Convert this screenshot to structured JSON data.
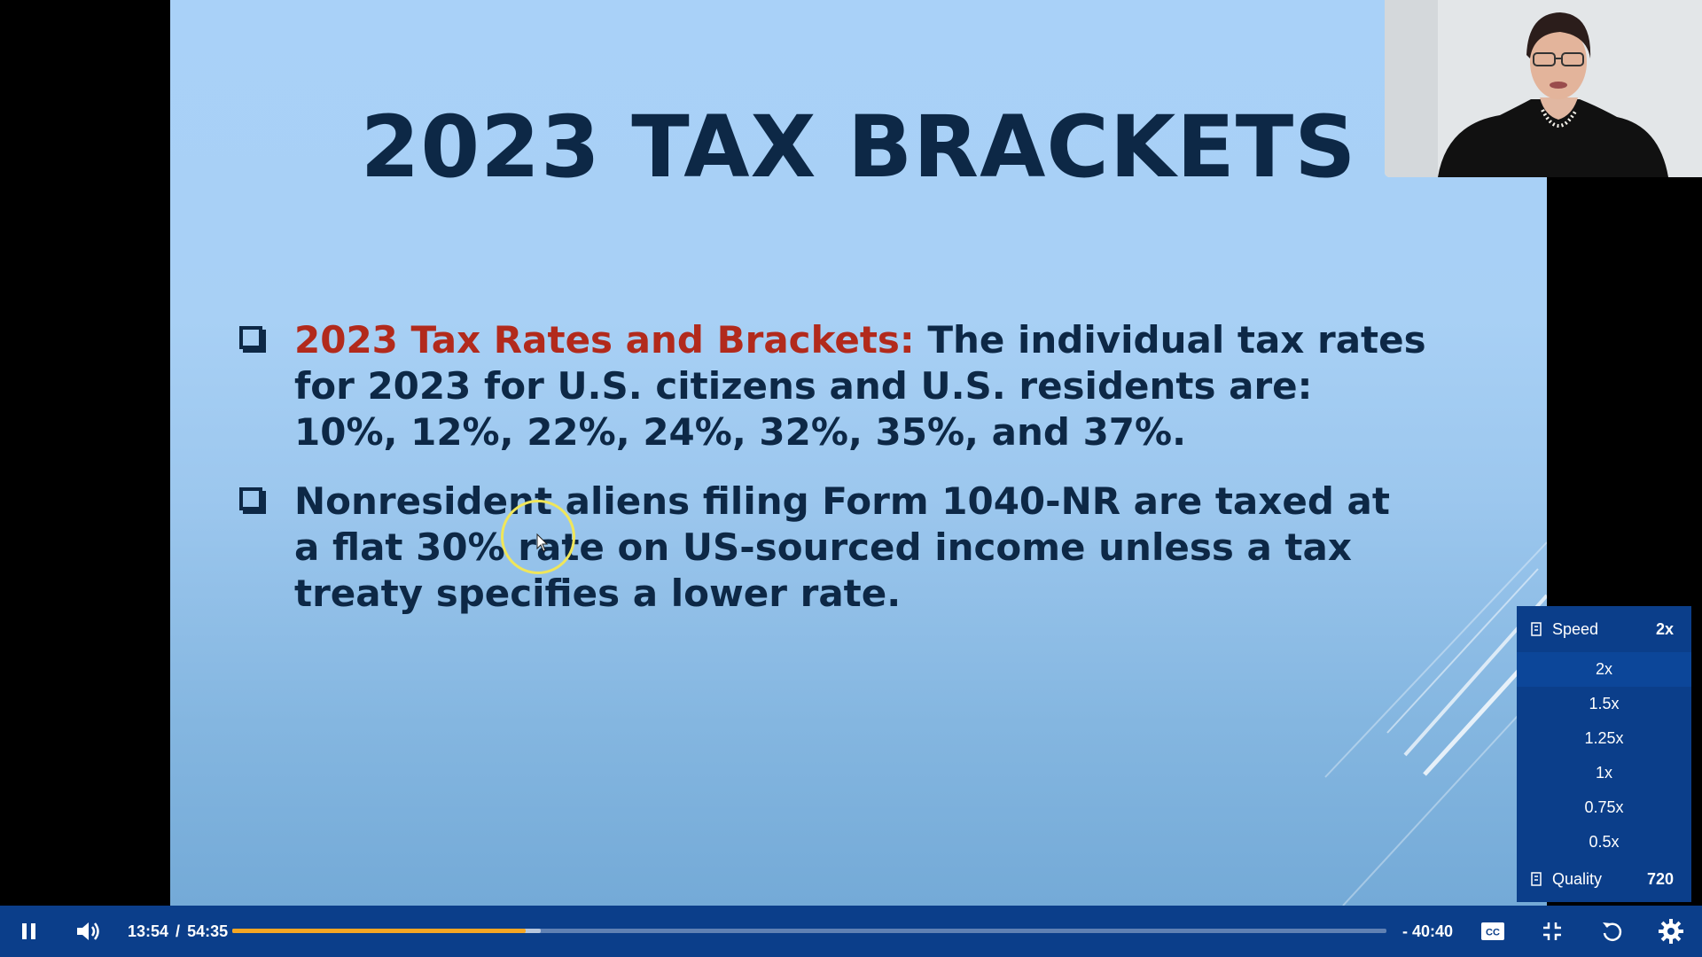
{
  "slide": {
    "title": "2023 TAX BRACKETS",
    "bullets": [
      {
        "lead": "2023 Tax Rates and Brackets:",
        "text": " The individual tax rates for 2023 for U.S. citizens and U.S. residents are: 10%, 12%, 22%, 24%, 32%, 35%, and 37%."
      },
      {
        "lead": "",
        "text": "Nonresident aliens filing Form 1040-NR are taxed at a flat 30% rate on US-sourced income unless a tax treaty specifies a lower rate."
      }
    ]
  },
  "player": {
    "current_time": "13:54",
    "separator": "/",
    "duration": "54:35",
    "remaining": "- 40:40",
    "progress_fraction": 0.2546,
    "buffered_fraction": 0.2675,
    "icons": {
      "play_pause": "pause-icon",
      "volume": "volume-icon",
      "captions": "closed-captions-icon",
      "fullscreen": "exit-fullscreen-icon",
      "replay": "replay-icon",
      "settings": "gear-icon"
    },
    "accent_color": "#f5a623",
    "bar_color": "#0b3e8a"
  },
  "settings_menu": {
    "speed_label": "Speed",
    "speed_value": "2x",
    "options": [
      "2x",
      "1.5x",
      "1.25x",
      "1x",
      "0.75x",
      "0.5x"
    ],
    "selected_option": "2x",
    "quality_label": "Quality",
    "quality_value": "720"
  }
}
